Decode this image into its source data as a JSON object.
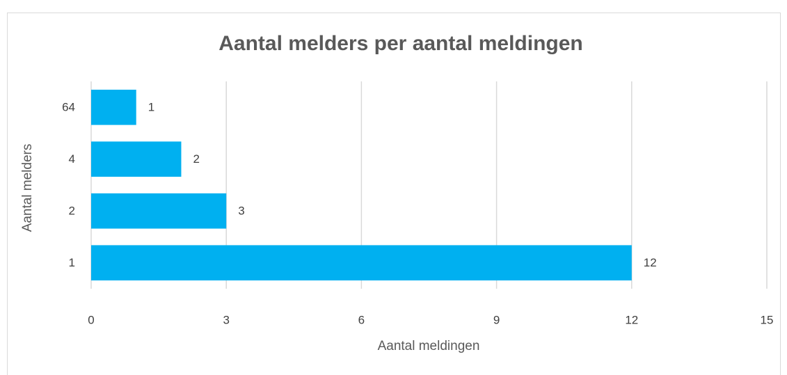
{
  "chart_data": {
    "type": "bar",
    "orientation": "horizontal",
    "title": "Aantal melders per aantal meldingen",
    "x_label": "Aantal meldingen",
    "y_label": "Aantal melders",
    "categories": [
      "1",
      "2",
      "4",
      "64"
    ],
    "values": [
      12,
      3,
      2,
      1
    ],
    "color": "#00b0f0",
    "xlim": [
      0,
      15
    ],
    "xticks": [
      0,
      3,
      6,
      9,
      12,
      15
    ],
    "grid": true,
    "data_labels": true
  }
}
